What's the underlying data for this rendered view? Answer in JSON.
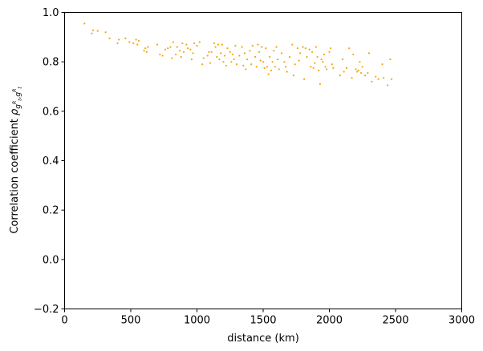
{
  "chart_data": {
    "type": "scatter",
    "title": "",
    "xlabel": "distance (km)",
    "ylabel_main": "Correlation coefficient ",
    "ylabel_symbol": "ρ",
    "ylabel_sub": "g",
    "ylabel_sub_sup": "R",
    "ylabel_sub_subscript": "t",
    "xlim": [
      0,
      3000
    ],
    "ylim": [
      -0.2,
      1.0
    ],
    "xticks": [
      0,
      500,
      1000,
      1500,
      2000,
      2500,
      3000
    ],
    "xtick_labels": [
      "0",
      "500",
      "1000",
      "1500",
      "2000",
      "2500",
      "3000"
    ],
    "yticks": [
      -0.2,
      0.0,
      0.2,
      0.4,
      0.6,
      0.8,
      1.0
    ],
    "ytick_labels": [
      "−0.2",
      "0.0",
      "0.2",
      "0.4",
      "0.6",
      "0.8",
      "1.0"
    ],
    "grid": false,
    "marker_color": "#f5a40a",
    "points": [
      [
        150,
        0.955
      ],
      [
        205,
        0.915
      ],
      [
        215,
        0.928
      ],
      [
        250,
        0.925
      ],
      [
        310,
        0.92
      ],
      [
        340,
        0.895
      ],
      [
        400,
        0.875
      ],
      [
        410,
        0.89
      ],
      [
        460,
        0.895
      ],
      [
        490,
        0.88
      ],
      [
        520,
        0.875
      ],
      [
        540,
        0.89
      ],
      [
        550,
        0.87
      ],
      [
        560,
        0.885
      ],
      [
        600,
        0.845
      ],
      [
        610,
        0.855
      ],
      [
        620,
        0.84
      ],
      [
        630,
        0.86
      ],
      [
        700,
        0.87
      ],
      [
        720,
        0.83
      ],
      [
        740,
        0.825
      ],
      [
        760,
        0.85
      ],
      [
        780,
        0.855
      ],
      [
        800,
        0.86
      ],
      [
        810,
        0.815
      ],
      [
        820,
        0.88
      ],
      [
        840,
        0.83
      ],
      [
        850,
        0.86
      ],
      [
        870,
        0.845
      ],
      [
        880,
        0.82
      ],
      [
        890,
        0.875
      ],
      [
        900,
        0.84
      ],
      [
        920,
        0.87
      ],
      [
        930,
        0.855
      ],
      [
        950,
        0.85
      ],
      [
        960,
        0.81
      ],
      [
        970,
        0.835
      ],
      [
        980,
        0.875
      ],
      [
        1000,
        0.865
      ],
      [
        1020,
        0.88
      ],
      [
        1040,
        0.79
      ],
      [
        1050,
        0.815
      ],
      [
        1080,
        0.825
      ],
      [
        1090,
        0.84
      ],
      [
        1100,
        0.795
      ],
      [
        1110,
        0.84
      ],
      [
        1130,
        0.875
      ],
      [
        1140,
        0.86
      ],
      [
        1150,
        0.82
      ],
      [
        1160,
        0.87
      ],
      [
        1170,
        0.81
      ],
      [
        1180,
        0.835
      ],
      [
        1190,
        0.87
      ],
      [
        1200,
        0.8
      ],
      [
        1210,
        0.825
      ],
      [
        1220,
        0.785
      ],
      [
        1230,
        0.855
      ],
      [
        1250,
        0.84
      ],
      [
        1260,
        0.8
      ],
      [
        1270,
        0.83
      ],
      [
        1280,
        0.81
      ],
      [
        1290,
        0.865
      ],
      [
        1300,
        0.79
      ],
      [
        1320,
        0.825
      ],
      [
        1340,
        0.86
      ],
      [
        1350,
        0.785
      ],
      [
        1360,
        0.835
      ],
      [
        1370,
        0.77
      ],
      [
        1380,
        0.81
      ],
      [
        1400,
        0.845
      ],
      [
        1410,
        0.79
      ],
      [
        1420,
        0.865
      ],
      [
        1440,
        0.82
      ],
      [
        1450,
        0.78
      ],
      [
        1460,
        0.87
      ],
      [
        1470,
        0.84
      ],
      [
        1480,
        0.805
      ],
      [
        1490,
        0.86
      ],
      [
        1500,
        0.8
      ],
      [
        1510,
        0.775
      ],
      [
        1520,
        0.855
      ],
      [
        1530,
        0.78
      ],
      [
        1540,
        0.75
      ],
      [
        1550,
        0.82
      ],
      [
        1560,
        0.765
      ],
      [
        1570,
        0.8
      ],
      [
        1580,
        0.845
      ],
      [
        1590,
        0.78
      ],
      [
        1600,
        0.86
      ],
      [
        1610,
        0.81
      ],
      [
        1620,
        0.77
      ],
      [
        1640,
        0.835
      ],
      [
        1660,
        0.8
      ],
      [
        1670,
        0.78
      ],
      [
        1680,
        0.76
      ],
      [
        1700,
        0.82
      ],
      [
        1720,
        0.87
      ],
      [
        1730,
        0.745
      ],
      [
        1740,
        0.79
      ],
      [
        1760,
        0.855
      ],
      [
        1770,
        0.805
      ],
      [
        1780,
        0.835
      ],
      [
        1800,
        0.86
      ],
      [
        1810,
        0.73
      ],
      [
        1820,
        0.855
      ],
      [
        1830,
        0.82
      ],
      [
        1850,
        0.85
      ],
      [
        1860,
        0.78
      ],
      [
        1870,
        0.84
      ],
      [
        1880,
        0.775
      ],
      [
        1890,
        0.795
      ],
      [
        1900,
        0.86
      ],
      [
        1910,
        0.82
      ],
      [
        1920,
        0.765
      ],
      [
        1930,
        0.71
      ],
      [
        1940,
        0.81
      ],
      [
        1950,
        0.8
      ],
      [
        1960,
        0.83
      ],
      [
        1970,
        0.78
      ],
      [
        1980,
        0.77
      ],
      [
        2000,
        0.84
      ],
      [
        2010,
        0.855
      ],
      [
        2020,
        0.79
      ],
      [
        2030,
        0.775
      ],
      [
        2080,
        0.745
      ],
      [
        2100,
        0.81
      ],
      [
        2110,
        0.76
      ],
      [
        2130,
        0.775
      ],
      [
        2150,
        0.855
      ],
      [
        2170,
        0.735
      ],
      [
        2180,
        0.83
      ],
      [
        2200,
        0.77
      ],
      [
        2210,
        0.76
      ],
      [
        2220,
        0.765
      ],
      [
        2230,
        0.8
      ],
      [
        2240,
        0.755
      ],
      [
        2250,
        0.78
      ],
      [
        2270,
        0.745
      ],
      [
        2290,
        0.755
      ],
      [
        2300,
        0.835
      ],
      [
        2320,
        0.72
      ],
      [
        2350,
        0.74
      ],
      [
        2370,
        0.73
      ],
      [
        2400,
        0.79
      ],
      [
        2410,
        0.735
      ],
      [
        2440,
        0.705
      ],
      [
        2460,
        0.81
      ],
      [
        2470,
        0.73
      ]
    ]
  }
}
